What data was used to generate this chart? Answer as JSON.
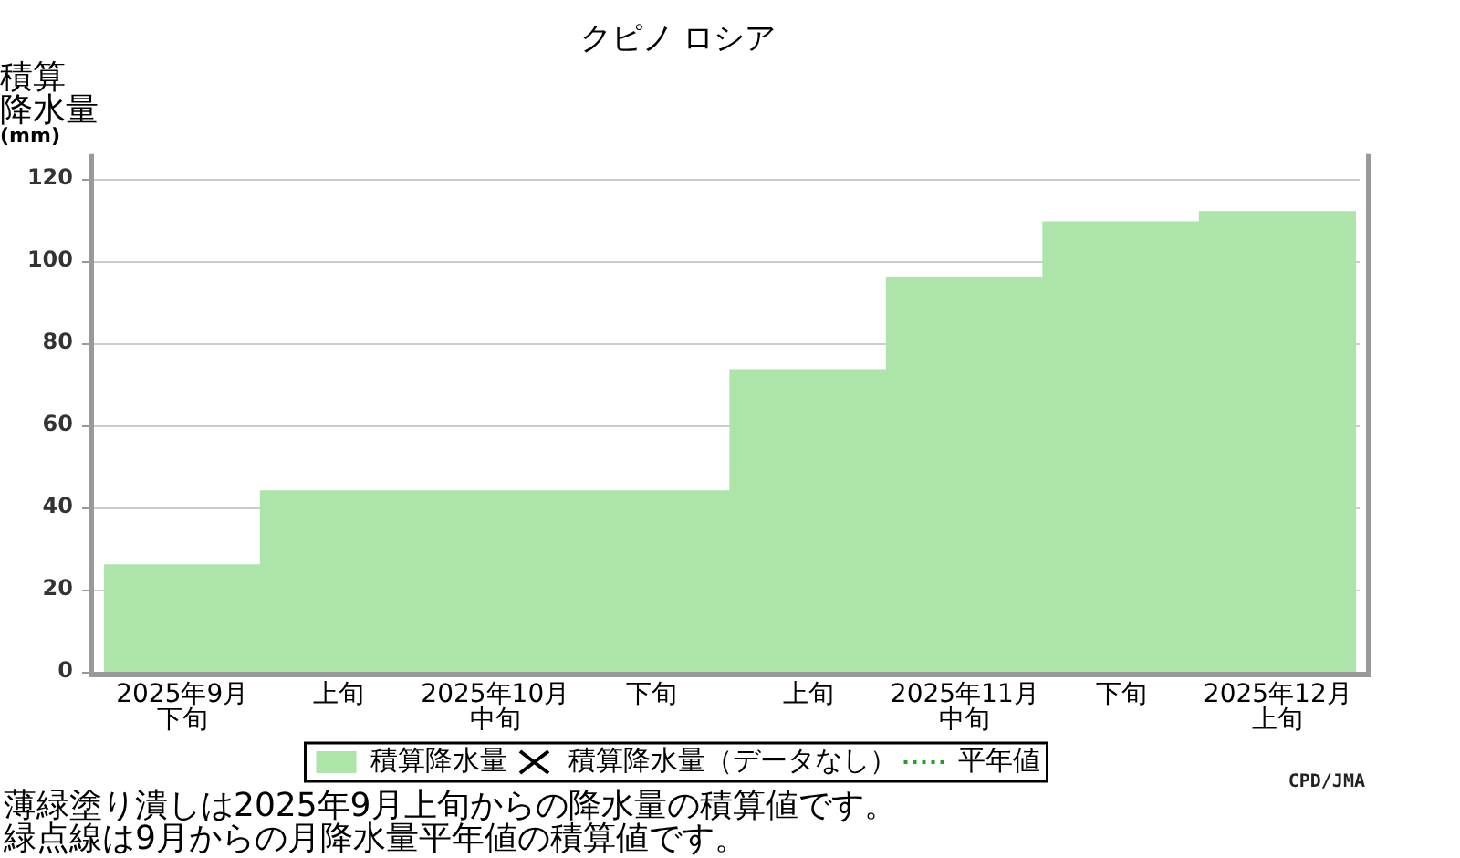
{
  "chart_data": {
    "type": "bar",
    "title": "クピノ ロシア",
    "ylabel": "積算降水量(mm)",
    "categories": [
      "2025年9月下旬",
      "上旬",
      "2025年10月中旬",
      "下旬",
      "上旬",
      "2025年11月中旬",
      "下旬",
      "2025年12月上旬"
    ],
    "series": [
      {
        "name": "積算降水量",
        "color": "#ace4aa",
        "values": [
          26,
          44,
          44,
          44,
          73.5,
          96,
          109.5,
          112
        ]
      },
      {
        "name": "積算降水量（データなし）",
        "type": "scatter",
        "marker": "cross",
        "color": "#000000",
        "values": [
          null,
          null,
          null,
          null,
          null,
          null,
          null,
          null
        ]
      },
      {
        "name": "平年値",
        "type": "line",
        "line_style": "dotted",
        "color": "#22a022",
        "values": [
          null,
          null,
          null,
          null,
          null,
          null,
          null,
          null
        ]
      }
    ],
    "ylim": [
      0,
      126
    ],
    "yticks": [
      0,
      20,
      40,
      60,
      80,
      100,
      120
    ],
    "grid": "y",
    "legend": "bottom",
    "annotations": [
      "薄緑塗り潰しは2025年9月上旬からの降水量の積算値です。",
      "緑点線は9月からの月降水量平年値の積算値です。",
      "CPD/JMA"
    ]
  }
}
